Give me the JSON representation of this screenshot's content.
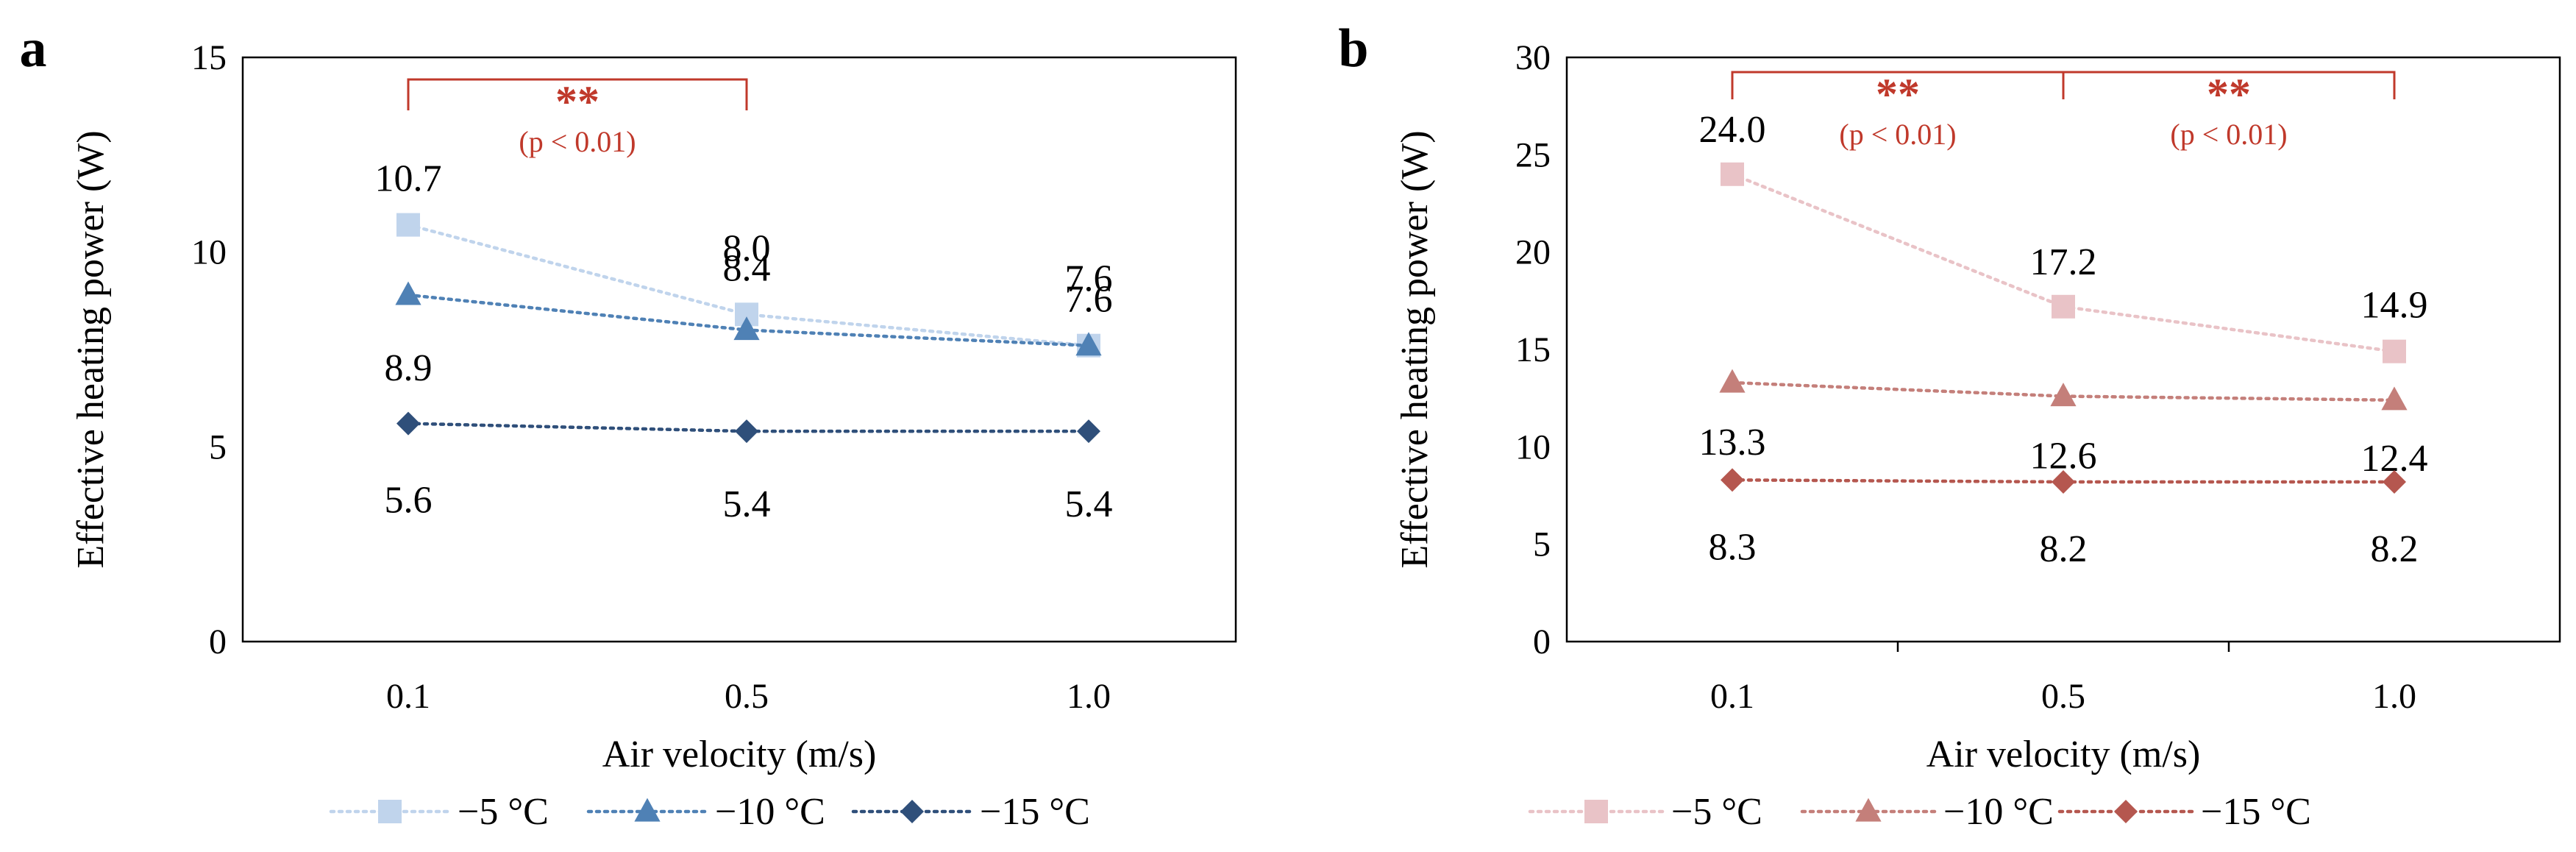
{
  "chart_data": [
    {
      "id": "a",
      "panel_label": "a",
      "type": "line",
      "categories": [
        "0.1",
        "0.5",
        "1.0"
      ],
      "xlabel": "Air velocity (m/s)",
      "ylabel": "Effective heating power (W)",
      "ylim": [
        0,
        15
      ],
      "yticks": [
        "0",
        "5",
        "10",
        "15"
      ],
      "series": [
        {
          "name": "−5 °C",
          "marker": "square",
          "color": "#c0d4ec",
          "values": [
            10.7,
            8.4,
            7.6
          ],
          "labels": [
            "10.7",
            "8.4",
            "7.6"
          ],
          "label_pos": "above"
        },
        {
          "name": "−10 °C",
          "marker": "triangle",
          "color": "#4f81b5",
          "values": [
            8.9,
            8.0,
            7.6
          ],
          "labels": [
            "8.9",
            "8.0",
            "7.6"
          ],
          "label_pos": "below"
        },
        {
          "name": "−15 °C",
          "marker": "diamond",
          "color": "#2f4f7a",
          "values": [
            5.6,
            5.4,
            5.4
          ],
          "labels": [
            "5.6",
            "5.4",
            "5.4"
          ],
          "label_pos": "below"
        }
      ],
      "annotations": [
        {
          "from": 0,
          "to": 1,
          "stars": "**",
          "text": "(p < 0.01)",
          "color": "#c0392b"
        }
      ]
    },
    {
      "id": "b",
      "panel_label": "b",
      "type": "line",
      "categories": [
        "0.1",
        "0.5",
        "1.0"
      ],
      "xlabel": "Air velocity (m/s)",
      "ylabel": "Effective heating power (W)",
      "ylim": [
        0,
        30
      ],
      "yticks": [
        "0",
        "5",
        "10",
        "15",
        "20",
        "25",
        "30"
      ],
      "series": [
        {
          "name": "−5 °C",
          "marker": "square",
          "color": "#e9c3c7",
          "values": [
            24.0,
            17.2,
            14.9
          ],
          "labels": [
            "24.0",
            "17.2",
            "14.9"
          ],
          "label_pos": "above"
        },
        {
          "name": "−10 °C",
          "marker": "triangle",
          "color": "#c47f7a",
          "values": [
            13.3,
            12.6,
            12.4
          ],
          "labels": [
            "13.3",
            "12.6",
            "12.4"
          ],
          "label_pos": "below"
        },
        {
          "name": "−15 °C",
          "marker": "diamond",
          "color": "#b5574f",
          "values": [
            8.3,
            8.2,
            8.2
          ],
          "labels": [
            "8.3",
            "8.2",
            "8.2"
          ],
          "label_pos": "below"
        }
      ],
      "annotations": [
        {
          "from": 0,
          "to": 1,
          "stars": "**",
          "text": "(p < 0.01)",
          "color": "#c0392b"
        },
        {
          "from": 1,
          "to": 2,
          "stars": "**",
          "text": "(p < 0.01)",
          "color": "#c0392b"
        }
      ]
    }
  ]
}
